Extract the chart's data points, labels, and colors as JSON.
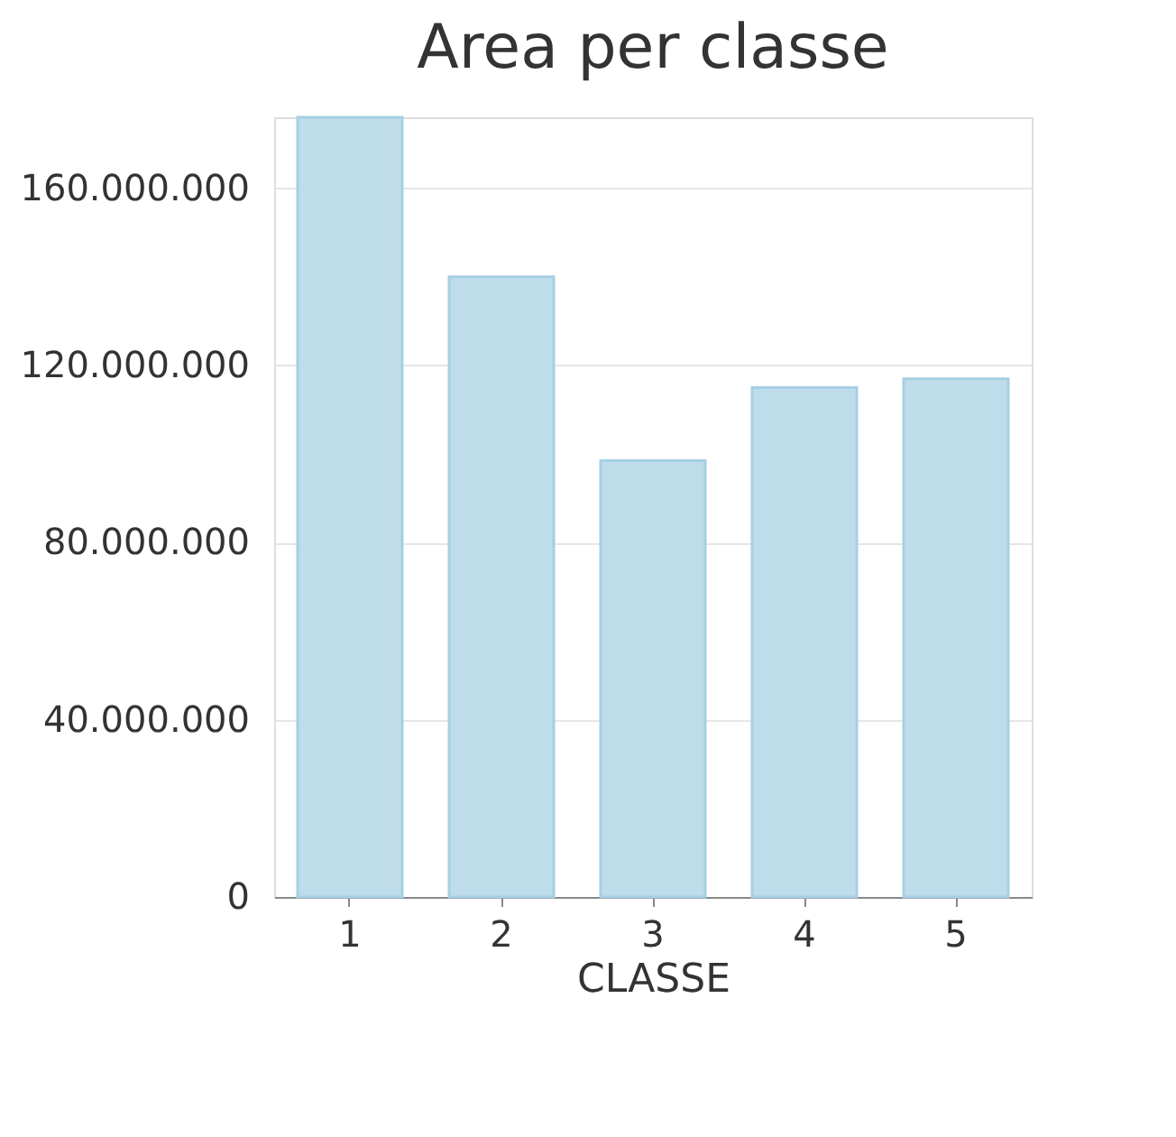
{
  "chart_data": {
    "type": "bar",
    "title": "Area per classe",
    "xlabel": "CLASSE",
    "categories": [
      "1",
      "2",
      "3",
      "4",
      "5"
    ],
    "values": [
      176000000,
      140000000,
      98500000,
      115000000,
      117000000
    ],
    "color": "#bfdcea",
    "ylim": [
      0,
      176000000
    ],
    "yticks": [
      {
        "value": 0,
        "label": "0"
      },
      {
        "value": 40000000,
        "label": "40.000.000"
      },
      {
        "value": 80000000,
        "label": "80.000.000"
      },
      {
        "value": 120000000,
        "label": "120.000.000"
      },
      {
        "value": 160000000,
        "label": "160.000.000"
      }
    ],
    "grid": "y"
  }
}
